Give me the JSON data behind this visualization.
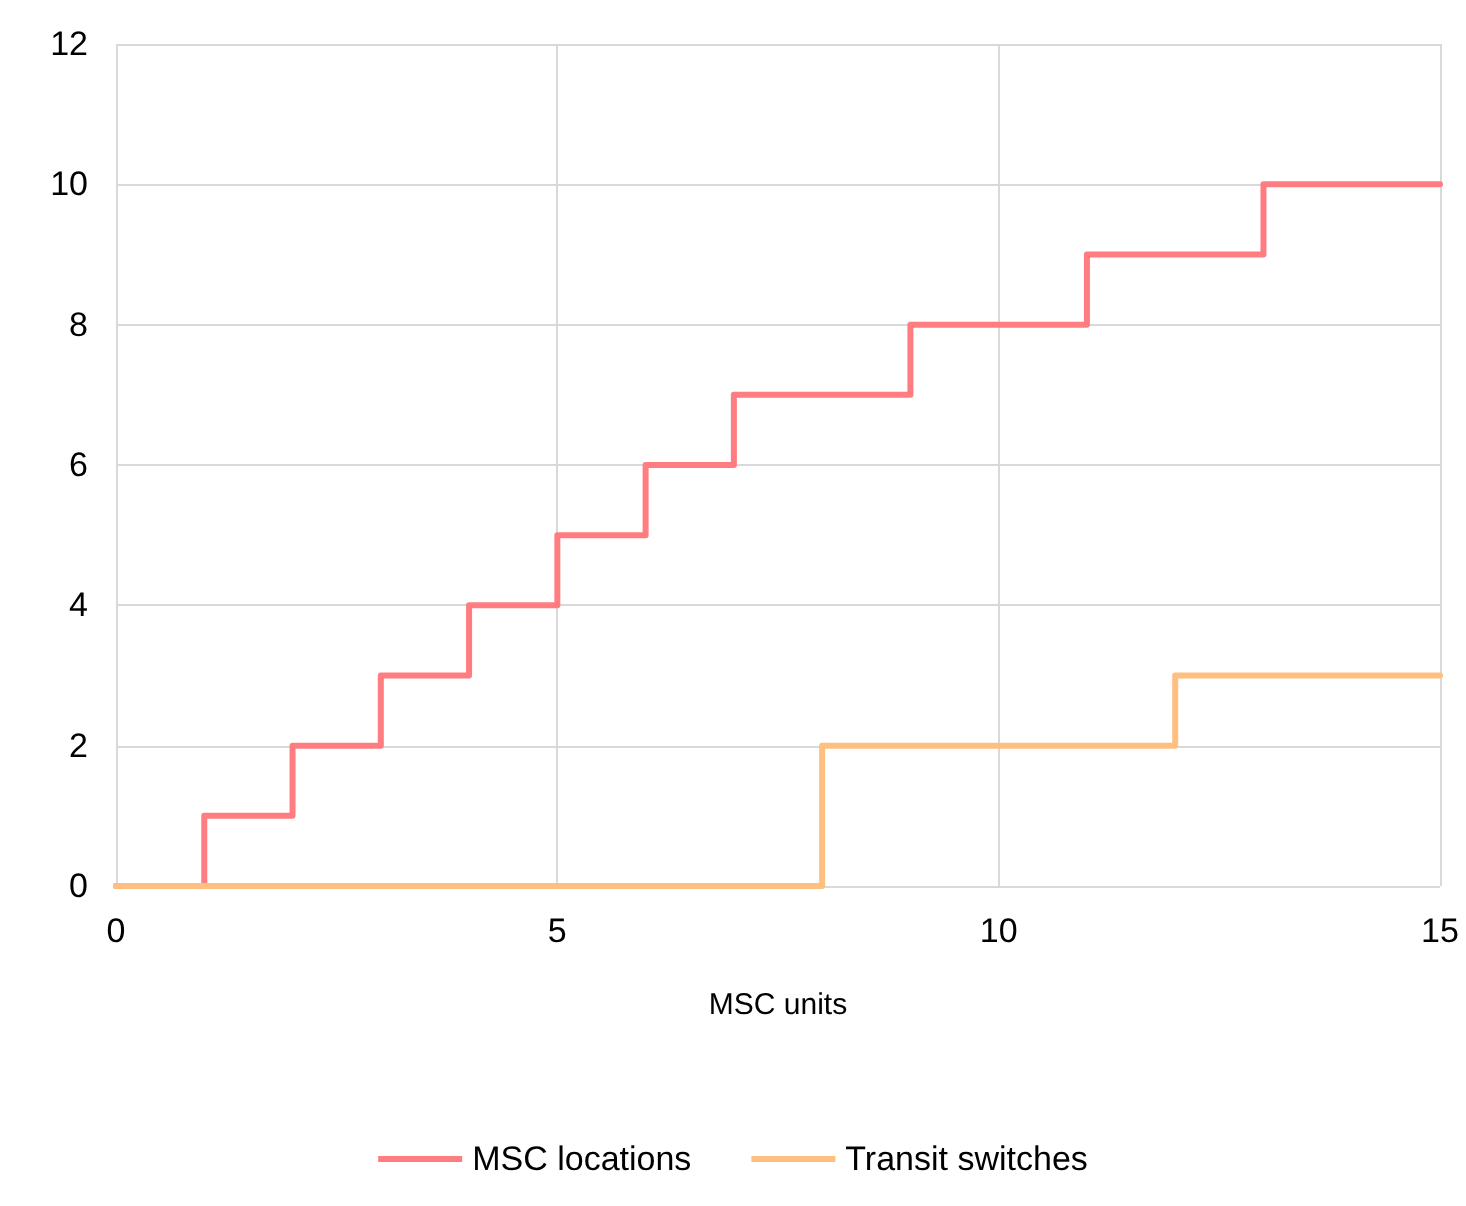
{
  "chart_data": {
    "type": "step",
    "xlabel": "MSC units",
    "series": [
      {
        "name": "MSC locations",
        "color": "#ff7c80",
        "x": [
          0,
          1,
          2,
          3,
          4,
          5,
          6,
          7,
          9,
          11,
          13,
          15
        ],
        "values": [
          0,
          1,
          2,
          3,
          4,
          5,
          6,
          7,
          8,
          9,
          10,
          10
        ]
      },
      {
        "name": "Transit switches",
        "color": "#ffbf7f",
        "x": [
          0,
          8,
          12,
          15
        ],
        "values": [
          0,
          2,
          3,
          3
        ]
      }
    ],
    "xlim": [
      0,
      15
    ],
    "xticks": [
      0,
      5,
      10,
      15
    ],
    "ylim": [
      0,
      12
    ],
    "yticks": [
      0,
      2,
      4,
      6,
      8,
      10,
      12
    ],
    "grid": true,
    "legend": "bottom",
    "marker": "none",
    "line_style": "solid"
  }
}
